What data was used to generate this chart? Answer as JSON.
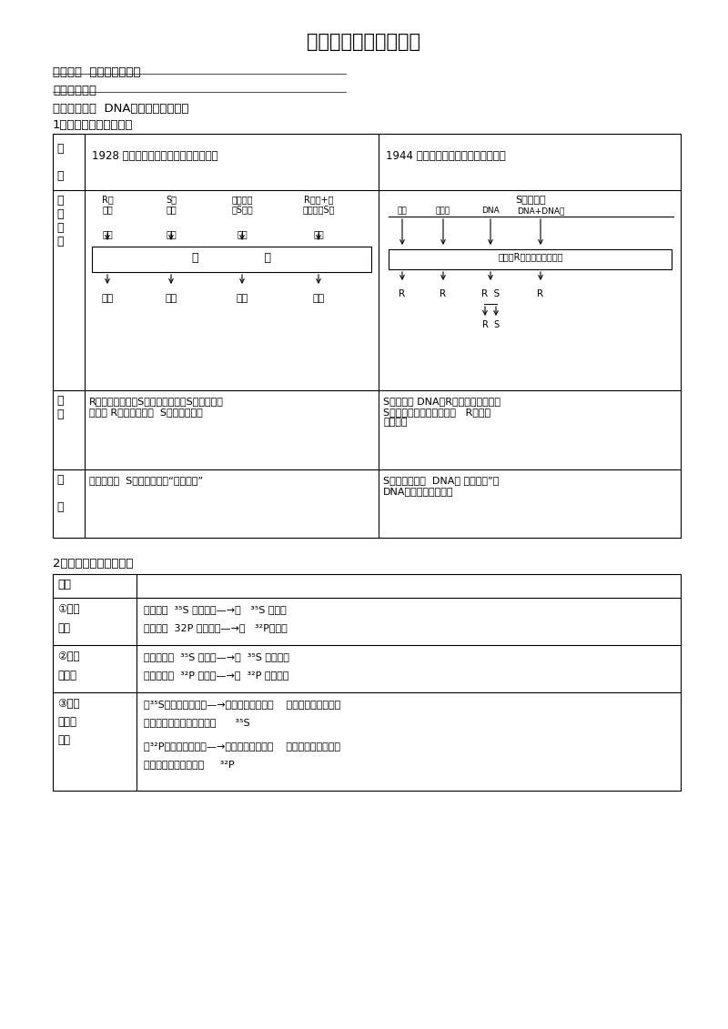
{
  "title": "遗传、变异与进化专题",
  "subtitle1": "小专题一  遗传的分子基础",
  "subtitle2": "核心考点整合",
  "subtitle3": "考点整合一：  DNA是遗传物质的实验",
  "subtitle4": "1．肺炎双球菌转化实验",
  "subtitle5": "2．噌菌体侵染细菌实验",
  "bg_color": "#ffffff",
  "table1_header_left": "1928 年英国格里菲思（体内转化实验）",
  "table1_header_right": "1944 年美国艾弗里（体外转化实验）",
  "left_top_labels": [
    "R型\n活菌",
    "S型\n活菌",
    "加热杀死\n的S型菌",
    "R型菌+加\n热杀死的S型"
  ],
  "left_inject": "注射",
  "left_mouse": "小                  鼠",
  "left_results": [
    "成活",
    "死亡",
    "成活",
    "死亡"
  ],
  "right_bacteria": "S型活细菌",
  "right_components": [
    "多糖",
    "蛋白质",
    "DNA",
    "DNA+DNA酶"
  ],
  "right_mix": "分别与R型活细菌混合培养",
  "right_results": [
    "R",
    "R",
    "R  S",
    "R"
  ],
  "analysis_left": "R型细菌无毒性、S型细菌有毒性；S型细菌内存\n在着使 R型细菌转化为  S型细菌的物质",
  "analysis_right": "S型细菌的 DNA使R型细菌发生转化；\nS型细菌的其他物质不能使   R型细菌\n发生转化",
  "conclusion_left": "加热杀死的  S型细菌体内有“转化因子”",
  "conclusion_right": "S型细菌体内的  DNA是 转化因子”，\nDNA是生物的遗传物质",
  "t2_header": "步骤",
  "t2_row1_left_line1": "①标记",
  "t2_row1_left_line2": "细菌",
  "t2_row1_right_line1": "细菌＋含  ³⁵S 的培养基—→含   ³⁵S 的细菌",
  "t2_row1_right_line2": "细菌＋含  32P 的培养基—→含   ³²P的细菌",
  "t2_row2_left_line1": "②标记",
  "t2_row2_left_line2": "噌菌体",
  "t2_row2_right_line1": "噌菌体＋含  ³⁵S 的细菌—→含  ³⁵S 的噌菌体",
  "t2_row2_right_line2": "噌菌体＋含  ³²P 的细菌—→含  ³²P 的噌菌体",
  "t2_row3_left_line1": "③噌菌",
  "t2_row3_left_line2": "体侵染",
  "t2_row3_left_line3": "细菌",
  "t2_row3_right_line1": "含³⁵S的噌菌体＋细菌—→上清液放射性高，    沉淠物放射性很低，",
  "t2_row3_right_line2": "新形成的噌菌体没有检测到      ³⁵S",
  "t2_row3_right_line3": "含³²P的噌菌体＋细菌—→上清液放射性低，    沉淠物放射性很高，",
  "t2_row3_right_line4": "新形成的噌菌体检测到     ³²P"
}
